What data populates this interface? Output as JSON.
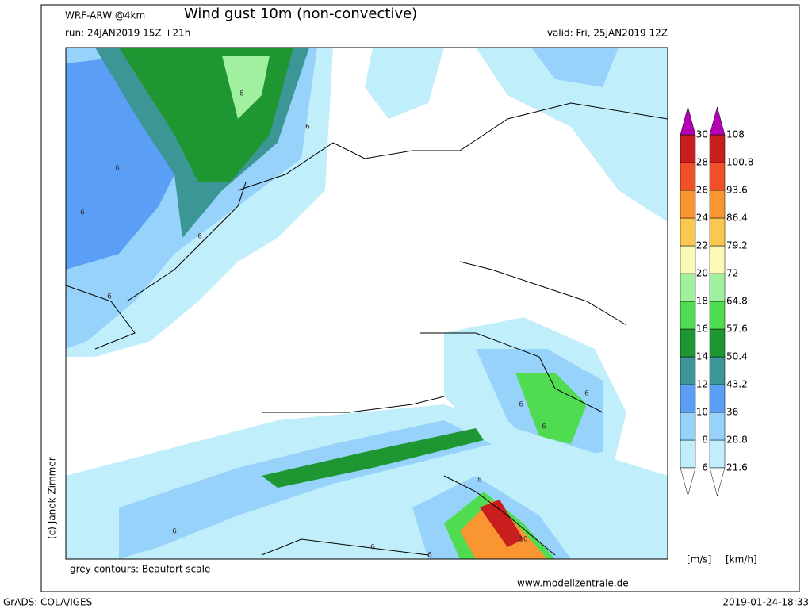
{
  "header": {
    "model": "WRF-ARW @4km",
    "title": "Wind gust 10m (non-convective)",
    "run": "run: 24JAN2019 15Z +21h",
    "valid": "valid: Fri, 25JAN2019 12Z"
  },
  "colorbar": {
    "ms_labels": [
      "6",
      "8",
      "10",
      "12",
      "14",
      "16",
      "18",
      "20",
      "22",
      "24",
      "26",
      "28",
      "30"
    ],
    "kmh_labels": [
      "21.6",
      "28.8",
      "36",
      "43.2",
      "50.4",
      "57.6",
      "64.8",
      "72",
      "79.2",
      "86.4",
      "93.6",
      "100.8",
      "108"
    ],
    "colors": [
      "#c0eefa",
      "#96d2fa",
      "#5a9ef5",
      "#3c9696",
      "#1e9632",
      "#50dc50",
      "#a0f0a0",
      "#fafab4",
      "#fac850",
      "#fa9632",
      "#f05028",
      "#c81e1e"
    ],
    "over_color": "#b400b4",
    "under_color": "#ffffff",
    "ms_unit": "[m/s]",
    "kmh_unit": "[km/h]"
  },
  "map": {
    "contour_labels": [
      "6",
      "6",
      "6",
      "6",
      "6",
      "6",
      "6",
      "6",
      "6",
      "6",
      "6",
      "8",
      "8",
      "10"
    ]
  },
  "footer": {
    "contours": "grey contours: Beaufort scale",
    "website": "www.modellzentrale.de",
    "grads": "GrADS: COLA/IGES",
    "timestamp": "2019-01-24-18:33",
    "copyright": "(c) Janek Zimmer"
  }
}
